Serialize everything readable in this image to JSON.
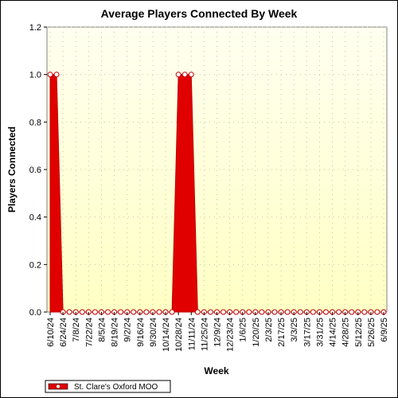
{
  "colors": {
    "series_fill": "#e00000",
    "series_stroke": "#c00000",
    "marker_fill": "#ffffff",
    "plot_bg_top": "#fffff0",
    "plot_bg_bottom": "#ffffc4",
    "grid": "#c8c8a8"
  },
  "chart_data": {
    "type": "area",
    "title": "Average Players Connected By Week",
    "xlabel": "Week",
    "ylabel": "Players Connected",
    "ylim": [
      0,
      1.2
    ],
    "yticks": [
      "0.0",
      "0.2",
      "0.4",
      "0.6",
      "0.8",
      "1.0",
      "1.2"
    ],
    "grid": true,
    "legend_position": "bottom-left",
    "x_labels": [
      "6/10/24",
      "6/24/24",
      "7/8/24",
      "7/22/24",
      "8/5/24",
      "8/19/24",
      "9/2/24",
      "9/16/24",
      "9/30/24",
      "10/14/24",
      "10/28/24",
      "11/11/24",
      "11/25/24",
      "12/9/24",
      "12/23/24",
      "1/6/25",
      "1/20/25",
      "2/3/25",
      "2/17/25",
      "3/3/25",
      "3/17/25",
      "3/31/25",
      "4/14/25",
      "4/28/25",
      "5/12/25",
      "5/26/25",
      "6/9/25"
    ],
    "x": [
      "6/10/24",
      "6/17/24",
      "6/24/24",
      "7/1/24",
      "7/8/24",
      "7/15/24",
      "7/22/24",
      "7/29/24",
      "8/5/24",
      "8/12/24",
      "8/19/24",
      "8/26/24",
      "9/2/24",
      "9/9/24",
      "9/16/24",
      "9/23/24",
      "9/30/24",
      "10/7/24",
      "10/14/24",
      "10/21/24",
      "10/28/24",
      "11/4/24",
      "11/11/24",
      "11/18/24",
      "11/25/24",
      "12/2/24",
      "12/9/24",
      "12/16/24",
      "12/23/24",
      "12/30/24",
      "1/6/25",
      "1/13/25",
      "1/20/25",
      "1/27/25",
      "2/3/25",
      "2/10/25",
      "2/17/25",
      "2/24/25",
      "3/3/25",
      "3/10/25",
      "3/17/25",
      "3/24/25",
      "3/31/25",
      "4/7/25",
      "4/14/25",
      "4/21/25",
      "4/28/25",
      "5/5/25",
      "5/12/25",
      "5/19/25",
      "5/26/25",
      "6/2/25",
      "6/9/25"
    ],
    "series": [
      {
        "name": "St. Clare's Oxford MOO",
        "values": [
          1,
          1,
          0,
          0,
          0,
          0,
          0,
          0,
          0,
          0,
          0,
          0,
          0,
          0,
          0,
          0,
          0,
          0,
          0,
          0,
          1,
          1,
          1,
          0,
          0,
          0,
          0,
          0,
          0,
          0,
          0,
          0,
          0,
          0,
          0,
          0,
          0,
          0,
          0,
          0,
          0,
          0,
          0,
          0,
          0,
          0,
          0,
          0,
          0,
          0,
          0,
          0,
          0
        ]
      }
    ]
  }
}
